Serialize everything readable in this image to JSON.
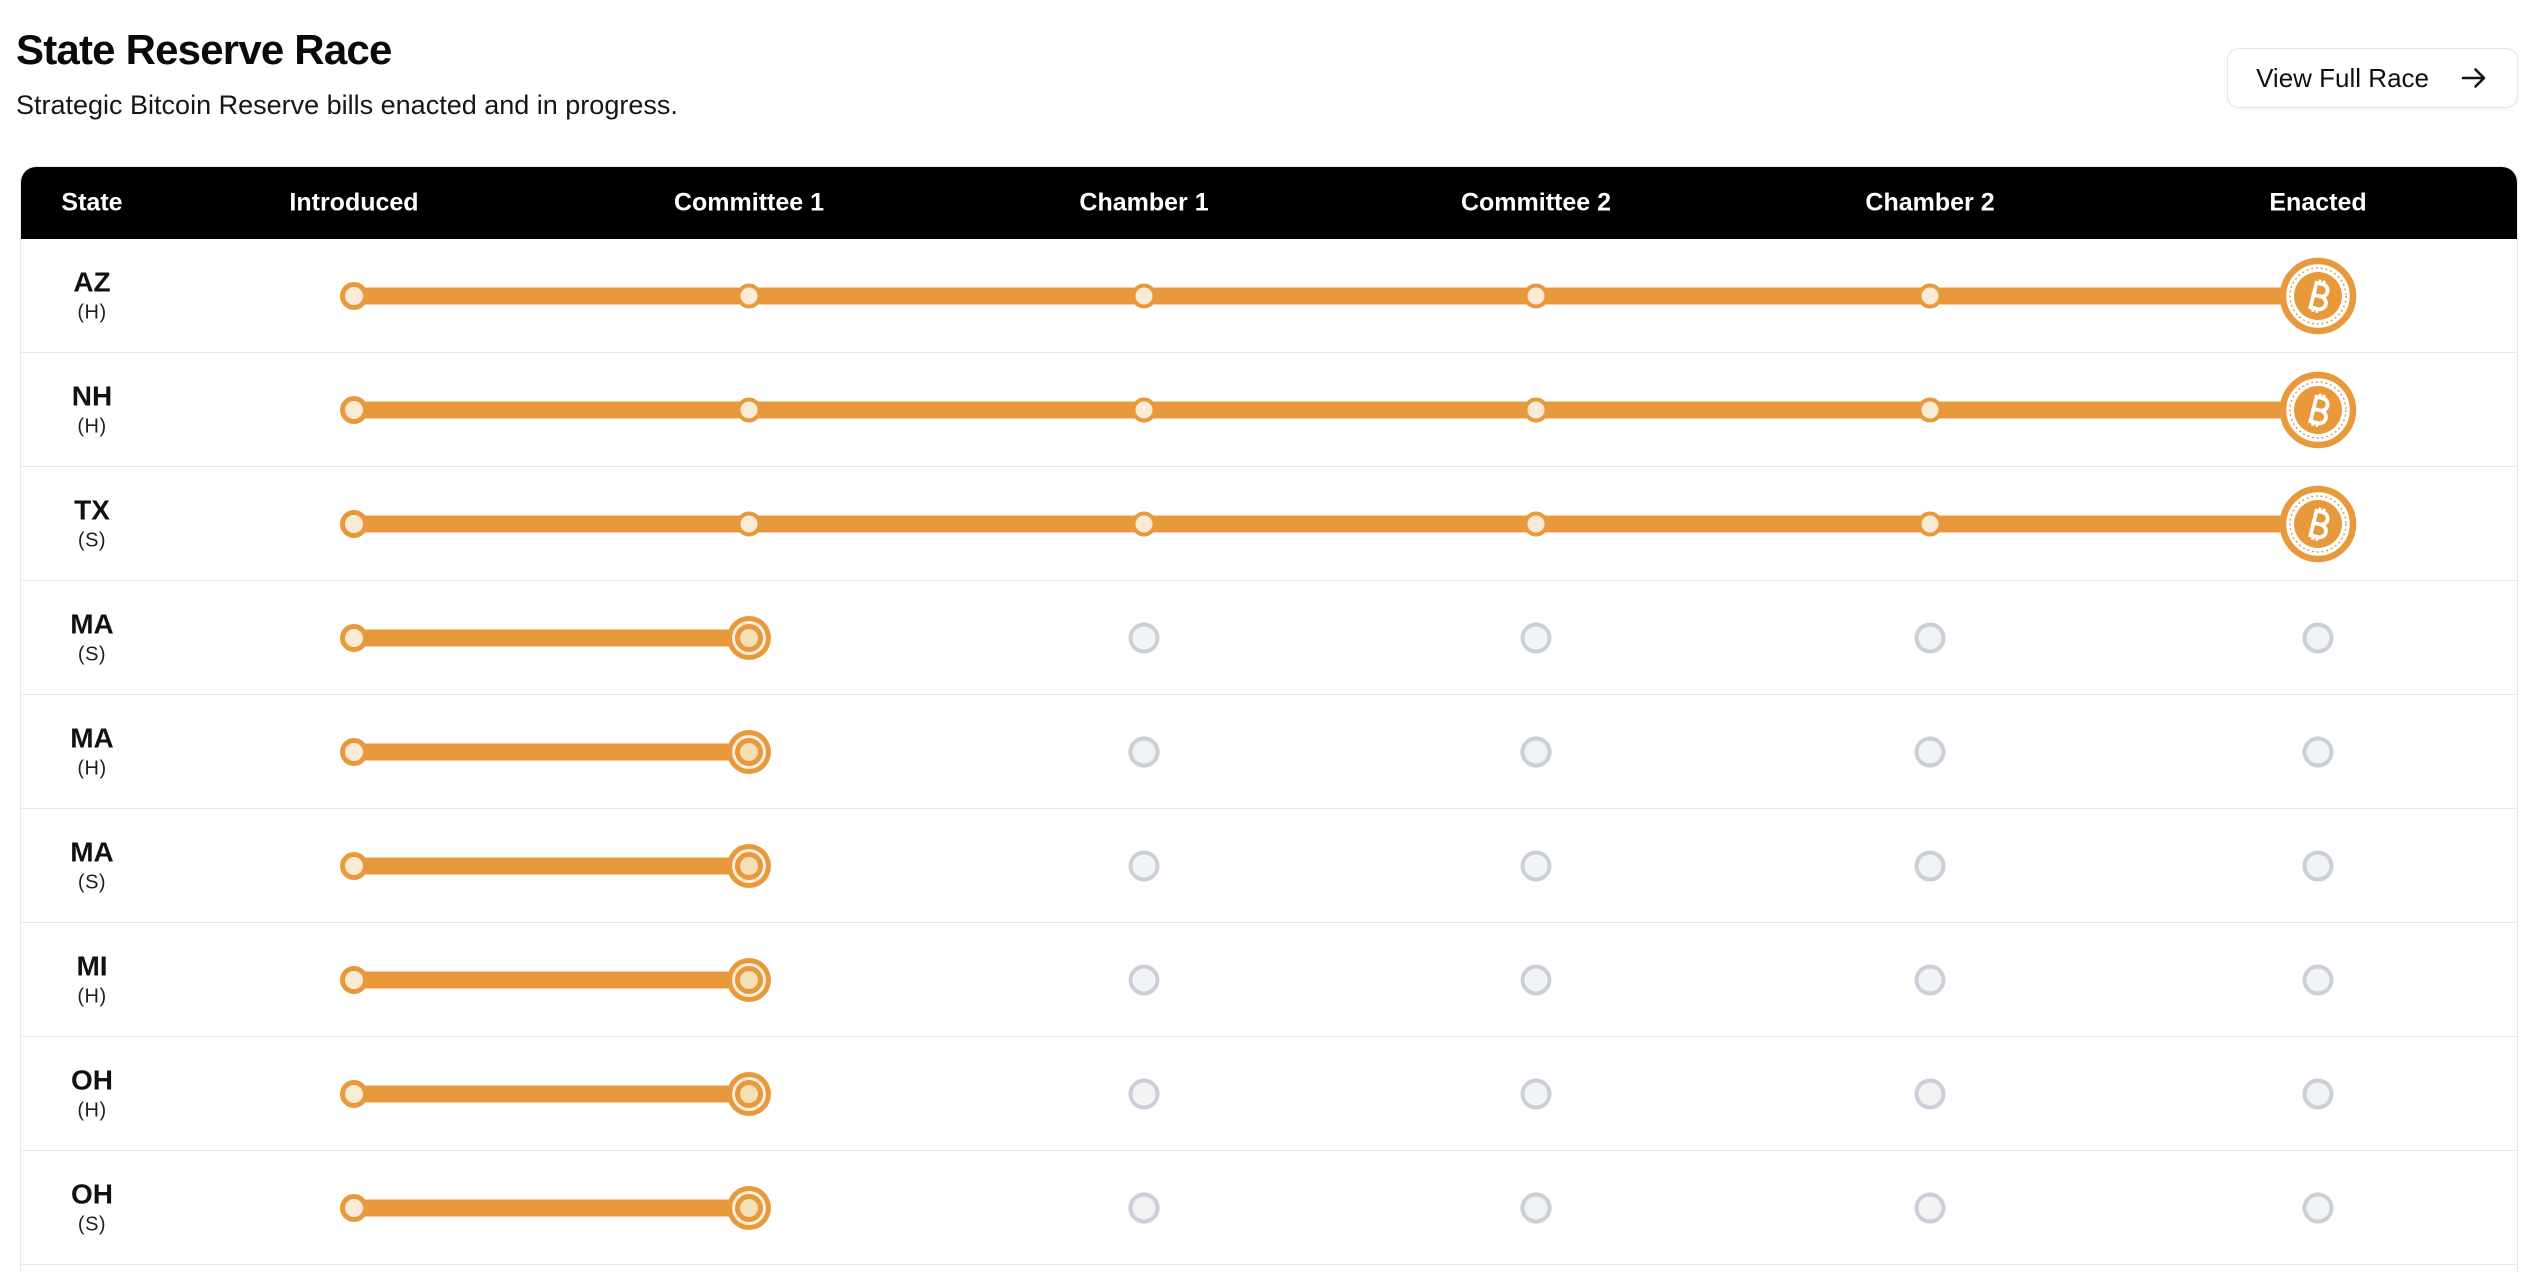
{
  "header": {
    "title": "State Reserve Race",
    "subtitle": "Strategic Bitcoin Reserve bills enacted and in progress.",
    "view_full_race_button": {
      "label": "View Full Race",
      "icon": "arrow-right-icon"
    }
  },
  "race_table": {
    "columns": [
      "State",
      "Introduced",
      "Committee 1",
      "Chamber 1",
      "Committee 2",
      "Chamber 2",
      "Enacted"
    ],
    "stage_keys": [
      "introduced",
      "committee1",
      "chamber1",
      "committee2",
      "chamber2",
      "enacted"
    ],
    "enacted_icon": "bitcoin-icon",
    "rows": [
      {
        "state": "AZ",
        "chamber": "(H)",
        "stage": "enacted"
      },
      {
        "state": "NH",
        "chamber": "(H)",
        "stage": "enacted"
      },
      {
        "state": "TX",
        "chamber": "(S)",
        "stage": "enacted"
      },
      {
        "state": "MA",
        "chamber": "(S)",
        "stage": "committee1"
      },
      {
        "state": "MA",
        "chamber": "(H)",
        "stage": "committee1"
      },
      {
        "state": "MA",
        "chamber": "(S)",
        "stage": "committee1"
      },
      {
        "state": "MI",
        "chamber": "(H)",
        "stage": "committee1"
      },
      {
        "state": "OH",
        "chamber": "(H)",
        "stage": "committee1"
      },
      {
        "state": "OH",
        "chamber": "(S)",
        "stage": "committee1"
      }
    ],
    "colors": {
      "accent_orange": "#e8993c",
      "stop_fill_cream": "#faebd7",
      "current_center_cream": "#f5dfb4",
      "pending_ring_gray": "#cbcfd8",
      "pending_fill_gray": "#f2f3f5",
      "header_bg": "#000000",
      "header_text": "#ffffff"
    }
  }
}
